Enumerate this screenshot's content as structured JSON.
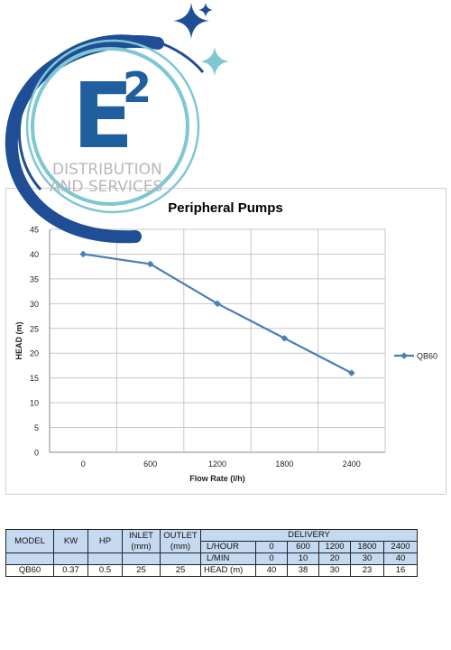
{
  "logo": {
    "mark": "E",
    "superscript": "2",
    "line1": "DISTRIBUTION",
    "line2": "AND SERVICES",
    "colors": {
      "navy": "#1f4e96",
      "teal": "#7ec7d3",
      "letter": "#1f5f9e",
      "text": "#b8b8b8"
    }
  },
  "chart_data": {
    "type": "line",
    "title": "Peripheral Pumps",
    "xlabel": "Flow Rate (l/h)",
    "ylabel": "HEAD (m)",
    "categories": [
      "0",
      "600",
      "1200",
      "1800",
      "2400"
    ],
    "series": [
      {
        "name": "QB60",
        "values": [
          40,
          38,
          30,
          23,
          16
        ],
        "color": "#4a7ebb"
      }
    ],
    "ylim": [
      0,
      45
    ],
    "yticks": [
      0,
      5,
      10,
      15,
      20,
      25,
      30,
      35,
      40,
      45
    ],
    "grid": true,
    "legend": "right"
  },
  "table": {
    "headers": {
      "model": "MODEL",
      "kw": "KW",
      "hp": "HP",
      "inlet": [
        "INLET",
        "(mm)"
      ],
      "outlet": [
        "OUTLET",
        "(mm)"
      ],
      "delivery": "DELIVERY"
    },
    "lhour_label": "L/HOUR",
    "lhour": [
      "0",
      "600",
      "1200",
      "1800",
      "2400"
    ],
    "lmin_label": "L/MIN",
    "lmin": [
      "0",
      "10",
      "20",
      "30",
      "40"
    ],
    "row": {
      "model": "QB60",
      "kw": "0.37",
      "hp": "0.5",
      "inlet": "25",
      "outlet": "25",
      "head_label": "HEAD (m)",
      "head": [
        "40",
        "38",
        "30",
        "23",
        "16"
      ]
    }
  }
}
